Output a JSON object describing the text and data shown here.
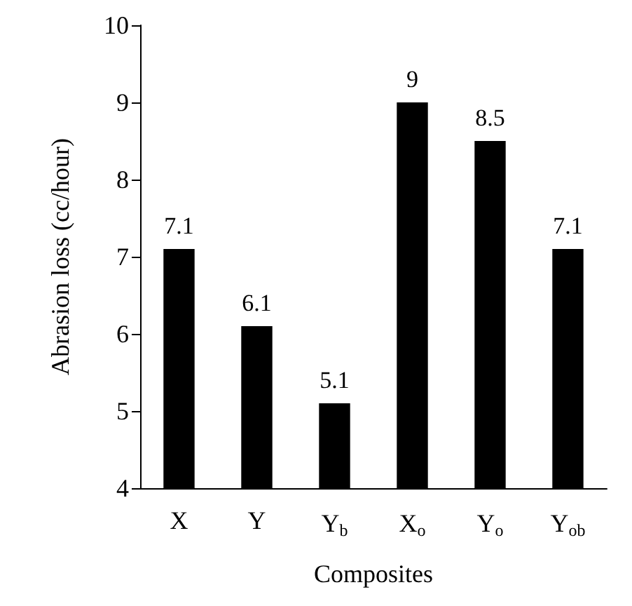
{
  "chart_data": {
    "type": "bar",
    "xlabel": "Composites",
    "ylabel": "Abrasion loss (cc/hour)",
    "categories": [
      "X",
      "Y",
      "Y$_{b}$",
      "X$_{o}$",
      "Y$_{o}$",
      "Y$_{ob}$"
    ],
    "values": [
      7.1,
      6.1,
      5.1,
      9,
      8.5,
      7.1
    ],
    "color": "#000000",
    "ylim": [
      4,
      10
    ],
    "yticks": [
      4,
      5,
      6,
      7,
      8,
      9,
      10
    ],
    "grid": false,
    "data_labels": true
  }
}
